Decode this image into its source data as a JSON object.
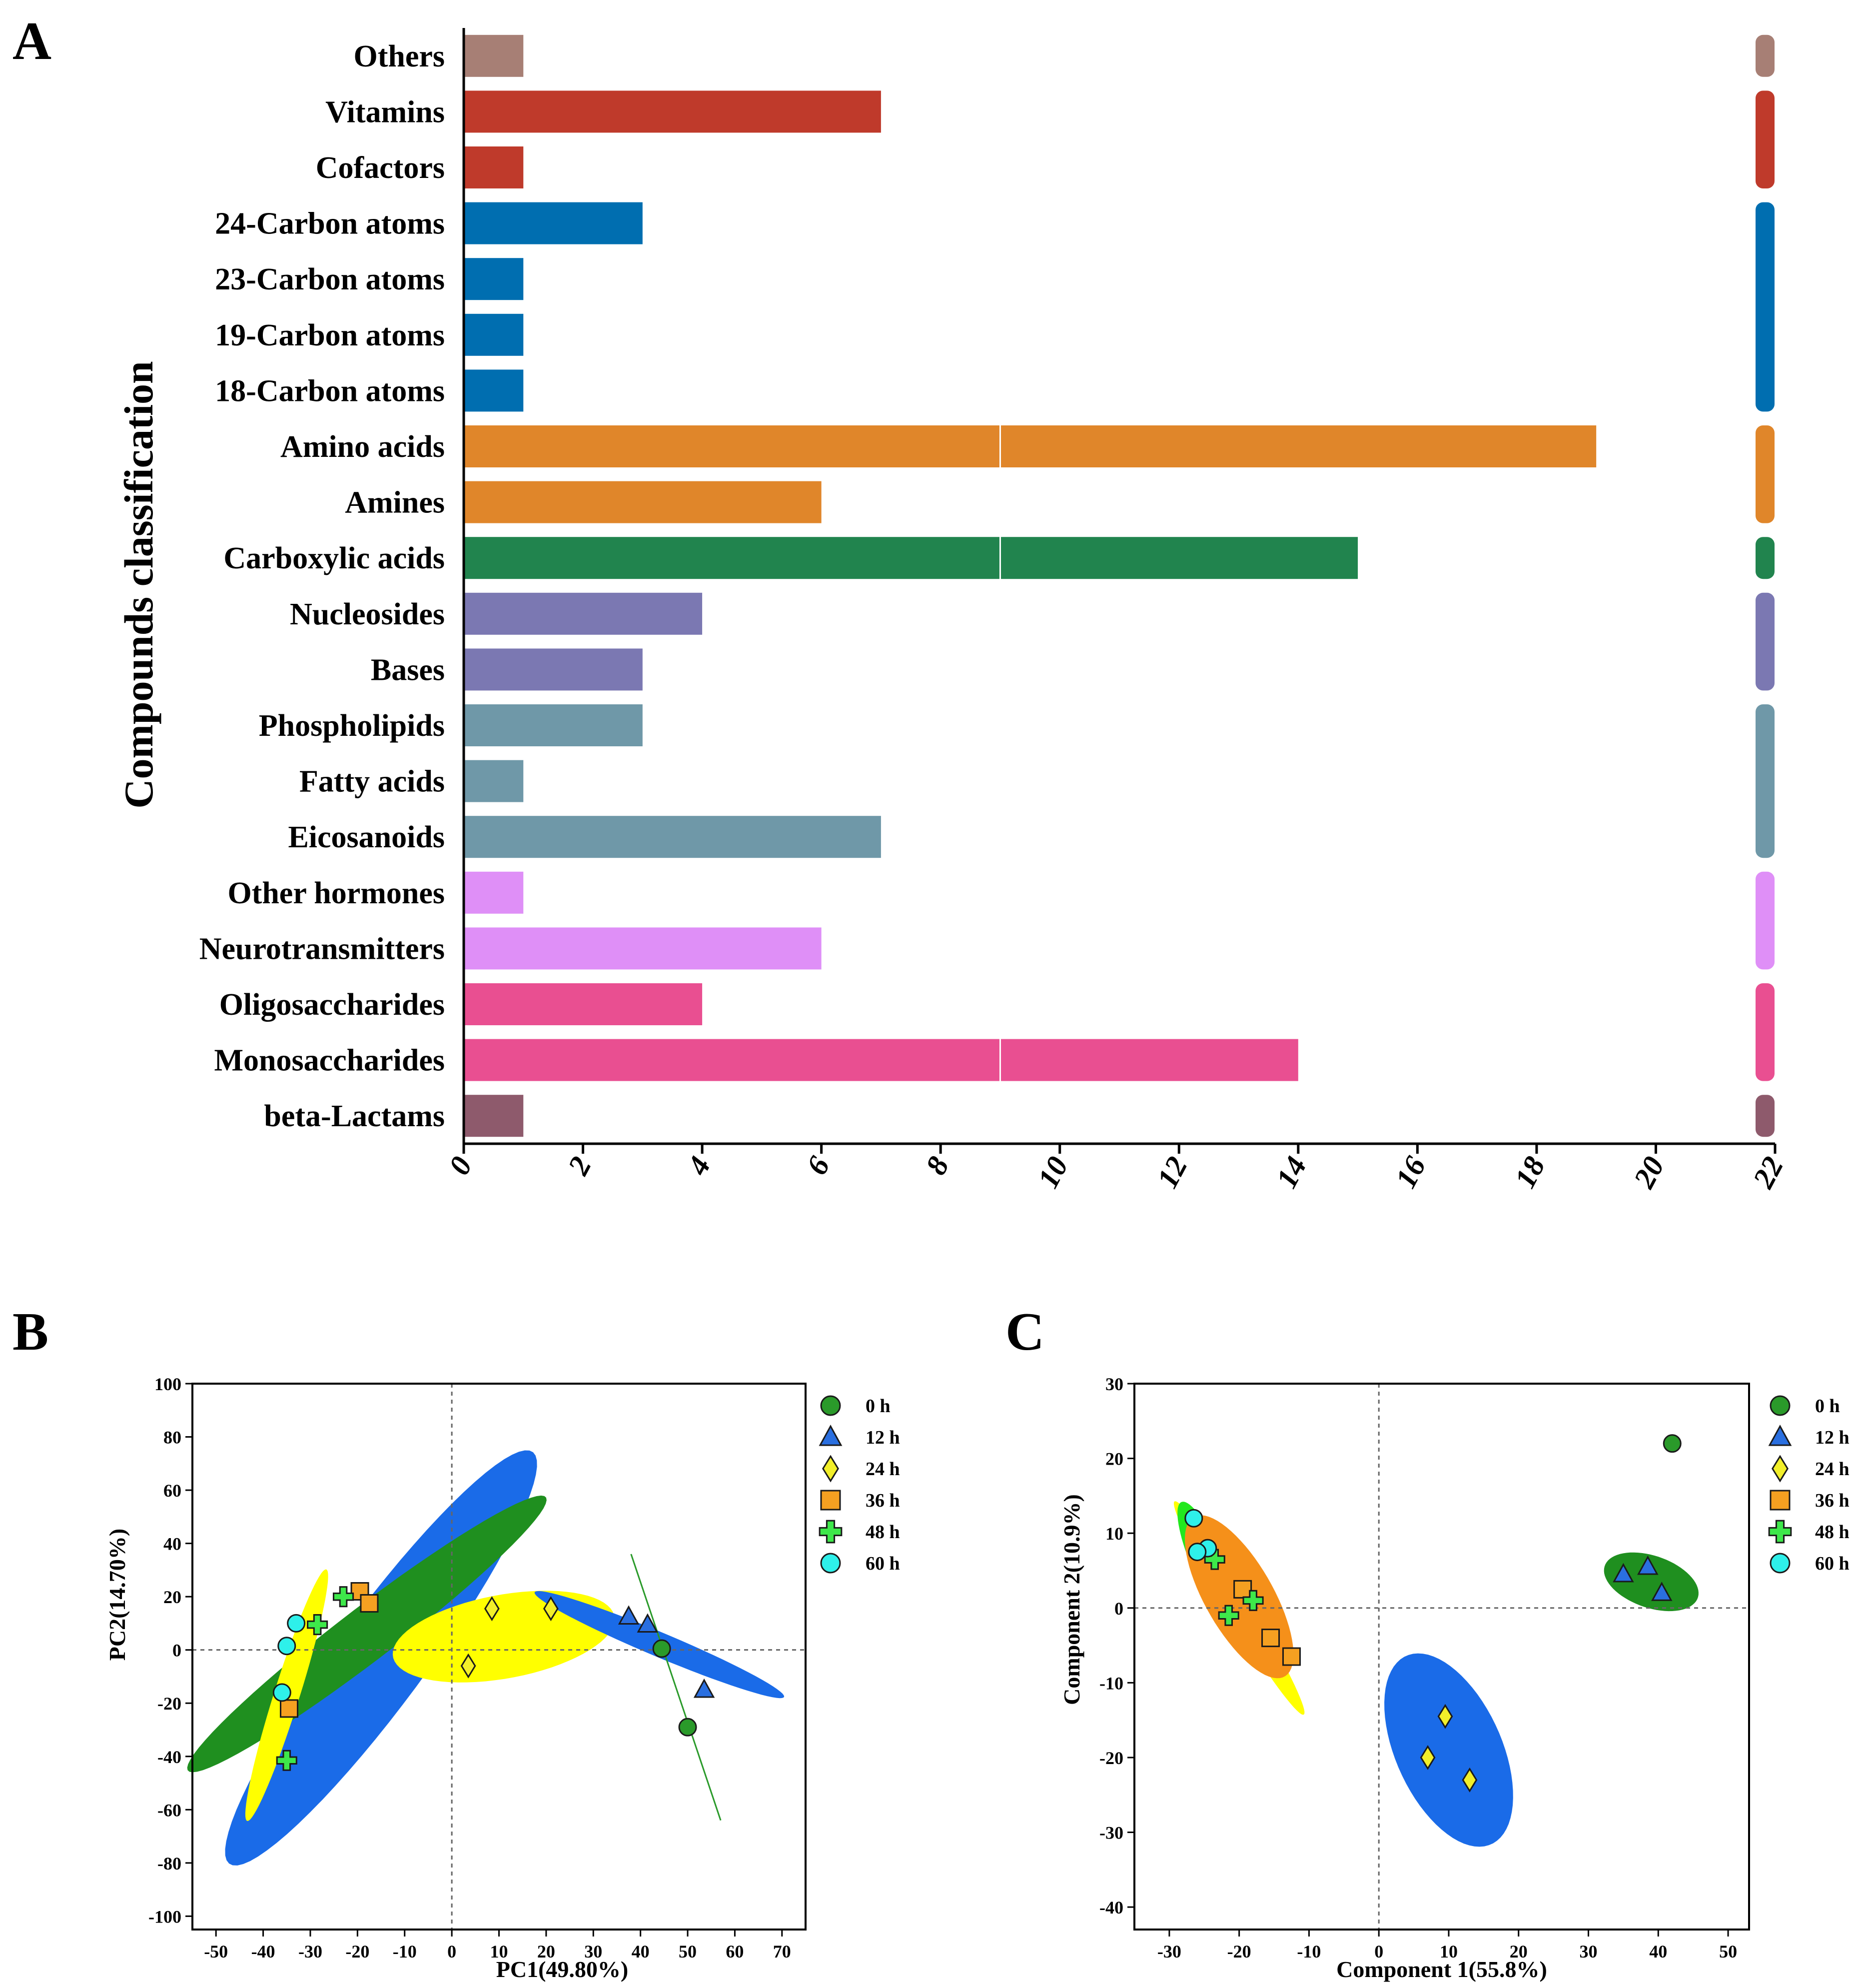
{
  "panels": {
    "a_label": "A",
    "b_label": "B",
    "c_label": "C"
  },
  "legend": [
    {
      "name": "0 h",
      "marker": "circle",
      "color": "#2a9a2a"
    },
    {
      "name": "12 h",
      "marker": "triangle",
      "color": "#2a6fe0"
    },
    {
      "name": "24 h",
      "marker": "diamond",
      "color": "#f2ef2a"
    },
    {
      "name": "36 h",
      "marker": "square",
      "color": "#f5a021"
    },
    {
      "name": "48 h",
      "marker": "cross",
      "color": "#3ee84a"
    },
    {
      "name": "60 h",
      "marker": "circle",
      "color": "#2ef0ea"
    }
  ],
  "chart_data": [
    {
      "type": "bar",
      "orientation": "horizontal",
      "title": "",
      "ylabel": "Compounds classification",
      "xlabel": "",
      "xlim": [
        0,
        22
      ],
      "xticks": [
        "0",
        "2",
        "4",
        "6",
        "8",
        "10",
        "12",
        "14",
        "16",
        "18",
        "20",
        "22"
      ],
      "categories": [
        "Others",
        "Vitamins",
        "Cofactors",
        "24-Carbon atoms",
        "23-Carbon atoms",
        "19-Carbon atoms",
        "18-Carbon atoms",
        "Amino acids",
        "Amines",
        "Carboxylic acids",
        "Nucleosides",
        "Bases",
        "Phospholipids",
        "Fatty acids",
        "Eicosanoids",
        "Other hormones",
        "Neurotransmitters",
        "Oligosaccharides",
        "Monosaccharides",
        "beta-Lactams"
      ],
      "values": [
        1,
        7,
        1,
        3,
        1,
        1,
        1,
        19,
        6,
        15,
        4,
        3,
        3,
        1,
        7,
        1,
        6,
        4,
        14,
        1
      ],
      "colors": [
        "#a77f75",
        "#bf3a2b",
        "#bf3a2b",
        "#006eb0",
        "#006eb0",
        "#006eb0",
        "#006eb0",
        "#e0862a",
        "#e0862a",
        "#21844e",
        "#7b78b2",
        "#7b78b2",
        "#6f98a8",
        "#6f98a8",
        "#6f98a8",
        "#df8ff7",
        "#df8ff7",
        "#e94f91",
        "#e94f91",
        "#8e5a6c"
      ],
      "group_bars": [
        {
          "start": 0,
          "end": 0,
          "color": "#a77f75"
        },
        {
          "start": 1,
          "end": 2,
          "color": "#bf3a2b"
        },
        {
          "start": 3,
          "end": 6,
          "color": "#006eb0"
        },
        {
          "start": 7,
          "end": 8,
          "color": "#e0862a"
        },
        {
          "start": 9,
          "end": 9,
          "color": "#21844e"
        },
        {
          "start": 10,
          "end": 11,
          "color": "#7b78b2"
        },
        {
          "start": 12,
          "end": 14,
          "color": "#6f98a8"
        },
        {
          "start": 15,
          "end": 16,
          "color": "#df8ff7"
        },
        {
          "start": 17,
          "end": 18,
          "color": "#e94f91"
        },
        {
          "start": 19,
          "end": 19,
          "color": "#8e5a6c"
        }
      ]
    },
    {
      "type": "scatter",
      "xlabel": "PC1(49.80%)",
      "ylabel": "PC2(14.70%)",
      "xlim": [
        -55,
        75
      ],
      "ylim": [
        -105,
        100
      ],
      "xticks": [
        -50,
        -40,
        -30,
        -20,
        -10,
        0,
        10,
        20,
        30,
        40,
        50,
        60,
        70
      ],
      "yticks": [
        -100,
        -80,
        -60,
        -40,
        -20,
        0,
        20,
        40,
        60,
        80,
        100
      ],
      "ellipses": [
        {
          "group": "12 h",
          "color": "#1a6be8",
          "cx": -15,
          "cy": -3,
          "rx": 84,
          "ry": 11,
          "angle": 68
        },
        {
          "group": "0 h",
          "color": "#1f8f1f",
          "cx": -18,
          "cy": 6,
          "rx": 64,
          "ry": 7.5,
          "angle": 54
        },
        {
          "group": "60 h",
          "color": "#ffff00",
          "cx": -35,
          "cy": -17,
          "rx": 48,
          "ry": 2.8,
          "angle": 80
        },
        {
          "group": "24 h",
          "color": "#ffff00",
          "cx": 11,
          "cy": 5,
          "rx": 25,
          "ry": 15,
          "angle": 25
        },
        {
          "group": "12 h",
          "color": "#1a6be8",
          "cx": 44,
          "cy": 2,
          "rx": 33,
          "ry": 4,
          "angle": -37
        }
      ],
      "lines": [
        {
          "group": "0 h",
          "color": "#2a9a2a",
          "x1": 38,
          "y1": 36,
          "x2": 57,
          "y2": -64
        }
      ],
      "series": [
        {
          "name": "0 h",
          "points": [
            [
              44.5,
              0.5
            ],
            [
              50,
              -29
            ]
          ]
        },
        {
          "name": "12 h",
          "points": [
            [
              37.5,
              12.5
            ],
            [
              41.5,
              9.5
            ],
            [
              53.5,
              -15
            ]
          ]
        },
        {
          "name": "24 h",
          "points": [
            [
              8.5,
              15.5
            ],
            [
              21,
              15.5
            ],
            [
              3.5,
              -6
            ]
          ]
        },
        {
          "name": "36 h",
          "points": [
            [
              -19.5,
              22
            ],
            [
              -17.5,
              17.5
            ],
            [
              -34.5,
              -22
            ]
          ]
        },
        {
          "name": "48 h",
          "points": [
            [
              -23,
              20
            ],
            [
              -28.5,
              9.5
            ],
            [
              -35,
              -41.5
            ]
          ]
        },
        {
          "name": "60 h",
          "points": [
            [
              -33,
              10
            ],
            [
              -35,
              1.5
            ],
            [
              -36,
              -16
            ]
          ]
        }
      ]
    },
    {
      "type": "scatter",
      "xlabel": "Component 1(55.8%)",
      "ylabel": "Component 2(10.9%)",
      "xlim": [
        -35,
        53
      ],
      "ylim": [
        -43,
        30
      ],
      "xticks": [
        -30,
        -20,
        -10,
        0,
        10,
        20,
        30,
        40,
        50
      ],
      "yticks": [
        -40,
        -30,
        -20,
        -10,
        0,
        10,
        20,
        30
      ],
      "ellipses": [
        {
          "group": "24 h",
          "color": "#ffff00",
          "cx": -20,
          "cy": 0,
          "rx": 17,
          "ry": 1.6,
          "angle": -57
        },
        {
          "group": "48 h",
          "color": "#22e81e",
          "cx": -24.5,
          "cy": 6,
          "rx": 9,
          "ry": 2.3,
          "angle": -65
        },
        {
          "group": "36 h",
          "color": "#f5901a",
          "cx": -20,
          "cy": 1.5,
          "rx": 12.5,
          "ry": 4.8,
          "angle": -58
        },
        {
          "group": "24 h",
          "color": "#1a6be8",
          "cx": 10,
          "cy": -19,
          "rx": 14,
          "ry": 7.5,
          "angle": -63
        },
        {
          "group": "0 h",
          "color": "#1f8f1f",
          "cx": 39,
          "cy": 3.5,
          "rx": 7,
          "ry": 3.5,
          "angle": -17
        }
      ],
      "lines": [],
      "series": [
        {
          "name": "0 h",
          "points": [
            [
              42,
              22
            ]
          ]
        },
        {
          "name": "12 h",
          "points": [
            [
              35,
              4.5
            ],
            [
              38.5,
              5.5
            ],
            [
              40.5,
              2
            ]
          ]
        },
        {
          "name": "24 h",
          "points": [
            [
              9.5,
              -14.5
            ],
            [
              7,
              -20
            ],
            [
              13,
              -23
            ]
          ]
        },
        {
          "name": "36 h",
          "points": [
            [
              -19.5,
              2.5
            ],
            [
              -15.5,
              -4
            ],
            [
              -12.5,
              -6.5
            ]
          ]
        },
        {
          "name": "48 h",
          "points": [
            [
              -23.5,
              6.5
            ],
            [
              -18,
              1
            ],
            [
              -21.5,
              -1
            ]
          ]
        },
        {
          "name": "60 h",
          "points": [
            [
              -26.5,
              12
            ],
            [
              -24.5,
              8
            ],
            [
              -26,
              7.5
            ]
          ]
        }
      ]
    }
  ]
}
